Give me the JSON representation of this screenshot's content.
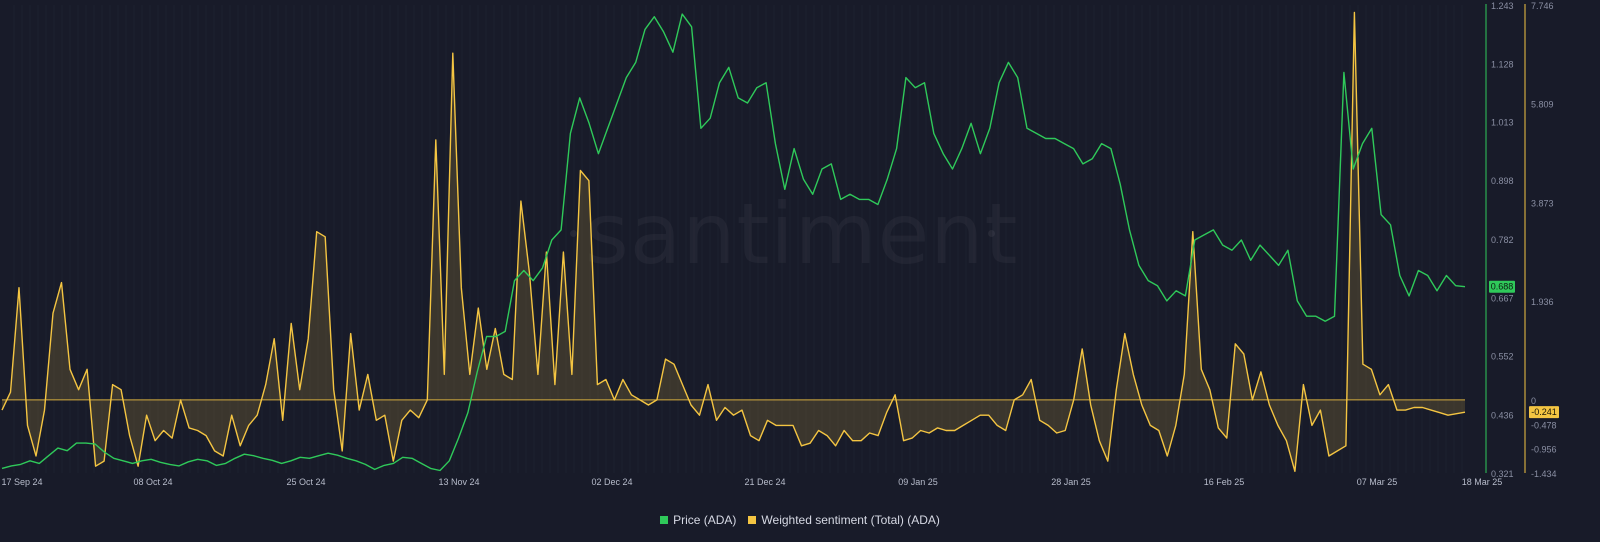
{
  "colors": {
    "background": "#181b29",
    "price": "#2fc95a",
    "sentiment": "#f4c542",
    "axis_text": "#8a8fa3",
    "x_axis_text": "#b7bccb",
    "green_axis_line": "#2fc95a",
    "yellow_axis_line": "#f4c542"
  },
  "watermark": "santiment",
  "legend": {
    "price": "Price (ADA)",
    "sentiment": "Weighted sentiment (Total) (ADA)"
  },
  "price_axis_ticks": [
    "1.243",
    "1.128",
    "1.013",
    "0.898",
    "0.782",
    "0.667",
    "0.552",
    "0.436",
    "0.321"
  ],
  "sentiment_axis_ticks": [
    "7.746",
    "5.809",
    "3.873",
    "1.936",
    "0",
    "-0.478",
    "-0.956",
    "-1.434"
  ],
  "badges": {
    "price": {
      "text": "0.688"
    },
    "sentiment": {
      "text": "-0.241"
    }
  },
  "chart_data": {
    "type": "line",
    "x_labels": [
      "17 Sep 24",
      "08 Oct 24",
      "25 Oct 24",
      "13 Nov 24",
      "02 Dec 24",
      "21 Dec 24",
      "09 Jan 25",
      "28 Jan 25",
      "16 Feb 25",
      "07 Mar 25",
      "18 Mar 25"
    ],
    "x_range": [
      "2024-09-17",
      "2025-03-18"
    ],
    "series": [
      {
        "name": "Price (ADA)",
        "axis": "right-inner",
        "ylim": [
          0.321,
          1.243
        ],
        "values": [
          0.33,
          0.335,
          0.338,
          0.345,
          0.34,
          0.355,
          0.37,
          0.365,
          0.38,
          0.38,
          0.378,
          0.362,
          0.35,
          0.345,
          0.34,
          0.345,
          0.348,
          0.342,
          0.338,
          0.335,
          0.343,
          0.348,
          0.345,
          0.336,
          0.34,
          0.35,
          0.358,
          0.355,
          0.35,
          0.346,
          0.34,
          0.345,
          0.352,
          0.35,
          0.355,
          0.36,
          0.356,
          0.35,
          0.345,
          0.338,
          0.328,
          0.336,
          0.34,
          0.352,
          0.35,
          0.34,
          0.33,
          0.326,
          0.345,
          0.39,
          0.44,
          0.52,
          0.59,
          0.59,
          0.6,
          0.7,
          0.72,
          0.7,
          0.725,
          0.78,
          0.8,
          0.99,
          1.06,
          1.01,
          0.95,
          1.0,
          1.05,
          1.1,
          1.13,
          1.195,
          1.22,
          1.19,
          1.15,
          1.225,
          1.2,
          1.0,
          1.02,
          1.09,
          1.12,
          1.06,
          1.05,
          1.08,
          1.09,
          0.97,
          0.88,
          0.96,
          0.9,
          0.87,
          0.92,
          0.93,
          0.86,
          0.87,
          0.86,
          0.86,
          0.85,
          0.9,
          0.96,
          1.1,
          1.08,
          1.09,
          0.99,
          0.95,
          0.92,
          0.96,
          1.01,
          0.95,
          1.0,
          1.09,
          1.13,
          1.1,
          1.0,
          0.99,
          0.98,
          0.98,
          0.97,
          0.96,
          0.93,
          0.94,
          0.97,
          0.96,
          0.89,
          0.8,
          0.73,
          0.7,
          0.69,
          0.66,
          0.68,
          0.67,
          0.78,
          0.79,
          0.8,
          0.77,
          0.76,
          0.78,
          0.74,
          0.77,
          0.75,
          0.73,
          0.76,
          0.66,
          0.63,
          0.63,
          0.62,
          0.63,
          1.11,
          0.92,
          0.97,
          1.0,
          0.83,
          0.81,
          0.71,
          0.67,
          0.72,
          0.71,
          0.68,
          0.71,
          0.69,
          0.688
        ]
      },
      {
        "name": "Weighted sentiment (Total) (ADA)",
        "axis": "right-outer",
        "ylim": [
          -1.434,
          7.746
        ],
        "baseline": 0,
        "values": [
          -0.2,
          0.15,
          2.2,
          -0.5,
          -1.1,
          -0.2,
          1.7,
          2.3,
          0.6,
          0.2,
          0.6,
          -1.3,
          -1.2,
          0.3,
          0.2,
          -0.7,
          -1.3,
          -0.3,
          -0.8,
          -0.6,
          -0.75,
          0.0,
          -0.55,
          -0.6,
          -0.7,
          -1.0,
          -1.1,
          -0.3,
          -0.9,
          -0.5,
          -0.3,
          0.3,
          1.2,
          -0.4,
          1.5,
          0.2,
          1.2,
          3.3,
          3.2,
          0.2,
          -1.0,
          1.3,
          -0.2,
          0.5,
          -0.4,
          -0.3,
          -1.2,
          -0.4,
          -0.2,
          -0.35,
          0.0,
          5.1,
          0.5,
          6.8,
          2.2,
          0.5,
          1.8,
          0.6,
          1.4,
          0.5,
          0.4,
          3.9,
          2.5,
          0.5,
          2.9,
          0.3,
          2.9,
          0.5,
          4.5,
          4.3,
          0.3,
          0.4,
          0.0,
          0.4,
          0.1,
          0.0,
          -0.1,
          0.0,
          0.8,
          0.7,
          0.3,
          -0.1,
          -0.3,
          0.3,
          -0.4,
          -0.15,
          -0.3,
          -0.2,
          -0.7,
          -0.8,
          -0.4,
          -0.5,
          -0.5,
          -0.5,
          -0.9,
          -0.85,
          -0.6,
          -0.7,
          -0.9,
          -0.6,
          -0.8,
          -0.8,
          -0.65,
          -0.7,
          -0.25,
          0.1,
          -0.8,
          -0.75,
          -0.6,
          -0.65,
          -0.55,
          -0.6,
          -0.6,
          -0.5,
          -0.4,
          -0.3,
          -0.3,
          -0.5,
          -0.6,
          0.0,
          0.1,
          0.4,
          -0.4,
          -0.5,
          -0.65,
          -0.6,
          0.0,
          1.0,
          -0.1,
          -0.8,
          -1.2,
          0.2,
          1.3,
          0.5,
          -0.1,
          -0.5,
          -0.6,
          -1.1,
          -0.5,
          0.5,
          3.3,
          0.6,
          0.2,
          -0.55,
          -0.75,
          1.1,
          0.9,
          0.0,
          0.55,
          -0.1,
          -0.5,
          -0.8,
          -1.4,
          0.3,
          -0.5,
          -0.2,
          -1.1,
          -1.0,
          -0.9,
          7.6,
          0.7,
          0.6,
          0.1,
          0.3,
          -0.2,
          -0.2,
          -0.15,
          -0.15,
          -0.2,
          -0.25,
          -0.3,
          -0.27,
          -0.241
        ]
      }
    ]
  }
}
